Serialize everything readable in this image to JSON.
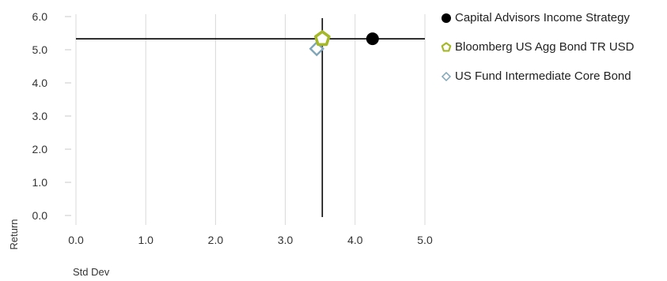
{
  "chart_data": {
    "type": "scatter",
    "xlabel": "Std Dev",
    "ylabel": "Return",
    "xlim": [
      0,
      5
    ],
    "ylim": [
      0,
      6
    ],
    "x_ticks": [
      "0.0",
      "1.0",
      "2.0",
      "3.0",
      "4.0",
      "5.0"
    ],
    "y_ticks": [
      "0.0",
      "1.0",
      "2.0",
      "3.0",
      "4.0",
      "5.0",
      "6.0"
    ],
    "grid": "vertical",
    "crosshair": {
      "x": 3.53,
      "y": 5.33
    },
    "legend_position": "right",
    "series": [
      {
        "name": "Capital Advisors Income Strategy",
        "x": 4.25,
        "y": 5.33,
        "marker": "circle",
        "color": "#000000"
      },
      {
        "name": "Bloomberg US Agg Bond TR USD",
        "x": 3.53,
        "y": 5.33,
        "marker": "pentagon",
        "color": "#a5b82a"
      },
      {
        "name": "US Fund Intermediate Core Bond",
        "x": 3.45,
        "y": 5.03,
        "marker": "diamond",
        "color": "#7fa6b8"
      }
    ]
  }
}
